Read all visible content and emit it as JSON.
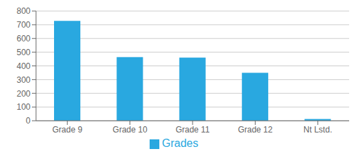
{
  "chart_data": {
    "type": "bar",
    "categories": [
      "Grade 9",
      "Grade 10",
      "Grade 11",
      "Grade 12",
      "Nt Lstd."
    ],
    "series": [
      {
        "name": "Grades",
        "color": "#29A8E0",
        "values": [
          728,
          464,
          460,
          350,
          12
        ]
      }
    ],
    "ylim": [
      0,
      800
    ],
    "yticks": [
      0,
      100,
      200,
      300,
      400,
      500,
      600,
      700,
      800
    ],
    "grid": true,
    "legend": "bottom"
  }
}
